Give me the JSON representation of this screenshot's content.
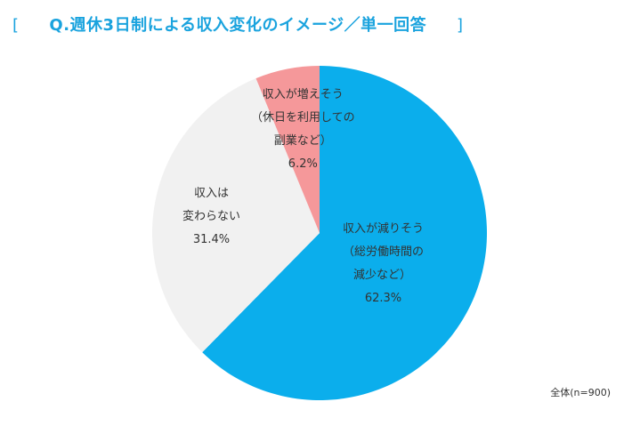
{
  "chart_data": {
    "type": "pie",
    "title": "Q.週休3日制による収入変化のイメージ／単一回答",
    "title_brackets": [
      "[",
      "]"
    ],
    "note": "全体(n=900)",
    "slices": [
      {
        "label_lines": [
          "収入が減りそう",
          "（総労働時間の",
          "減少など）"
        ],
        "value": 62.3,
        "value_label": "62.3%",
        "color": "#0baeec"
      },
      {
        "label_lines": [
          "収入は",
          "変わらない"
        ],
        "value": 31.4,
        "value_label": "31.4%",
        "color": "#f1f1f1"
      },
      {
        "label_lines": [
          "収入が増えそう",
          "（休日を利用しての",
          "副業など）"
        ],
        "value": 6.2,
        "value_label": "6.2%",
        "color": "#f5989a"
      }
    ]
  }
}
